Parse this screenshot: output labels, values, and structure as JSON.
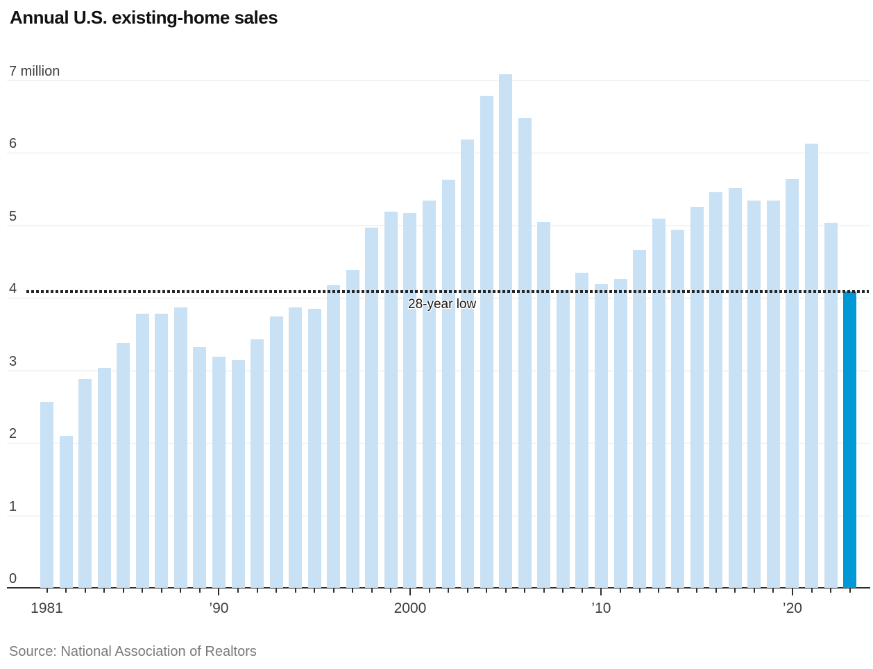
{
  "title": "Annual U.S. existing-home sales",
  "source": "Source: National Association of Realtors",
  "annotation": {
    "label": "28-year low",
    "value": 4.09
  },
  "y_axis": {
    "ticks": [
      {
        "value": 7,
        "label": "7 million"
      },
      {
        "value": 6,
        "label": "6"
      },
      {
        "value": 5,
        "label": "5"
      },
      {
        "value": 4,
        "label": "4"
      },
      {
        "value": 3,
        "label": "3"
      },
      {
        "value": 2,
        "label": "2"
      },
      {
        "value": 1,
        "label": "1"
      },
      {
        "value": 0,
        "label": "0"
      }
    ]
  },
  "x_axis": {
    "labels": [
      {
        "year": 1981,
        "text": "1981"
      },
      {
        "year": 1990,
        "text": "’90"
      },
      {
        "year": 2000,
        "text": "2000"
      },
      {
        "year": 2010,
        "text": "’10"
      },
      {
        "year": 2020,
        "text": "’20"
      }
    ],
    "long_tick_years": [
      1990,
      2000,
      2010,
      2020
    ]
  },
  "colors": {
    "bar": "#c9e1f4",
    "highlight": "#0099d6",
    "grid": "#e4e4e4",
    "axis": "#2e2e2e",
    "dotted": "#262626",
    "title": "#111111",
    "label": "#3d3d3d",
    "source": "#7a7a7a",
    "annotation": "#1a1a1a"
  },
  "chart_data": {
    "type": "bar",
    "title": "Annual U.S. existing-home sales",
    "unit": "million homes",
    "ylim": [
      0,
      7
    ],
    "grid": true,
    "legend": "none",
    "highlight_year": 2023,
    "highlight_value": 4.09,
    "annotations": [
      {
        "text": "28-year low",
        "y": 4.09,
        "style": "horizontal-dotted-line"
      }
    ],
    "x": [
      1981,
      1982,
      1983,
      1984,
      1985,
      1986,
      1987,
      1988,
      1989,
      1990,
      1991,
      1992,
      1993,
      1994,
      1995,
      1996,
      1997,
      1998,
      1999,
      2000,
      2001,
      2002,
      2003,
      2004,
      2005,
      2006,
      2007,
      2008,
      2009,
      2010,
      2011,
      2012,
      2013,
      2014,
      2015,
      2016,
      2017,
      2018,
      2019,
      2020,
      2021,
      2022,
      2023
    ],
    "values": [
      2.56,
      2.1,
      2.88,
      3.03,
      3.38,
      3.78,
      3.78,
      3.87,
      3.32,
      3.19,
      3.14,
      3.43,
      3.74,
      3.87,
      3.85,
      4.17,
      4.38,
      4.97,
      5.19,
      5.17,
      5.34,
      5.63,
      6.18,
      6.78,
      7.08,
      6.48,
      5.04,
      4.11,
      4.34,
      4.19,
      4.26,
      4.66,
      5.09,
      4.94,
      5.25,
      5.45,
      5.51,
      5.34,
      5.34,
      5.64,
      6.12,
      5.03,
      4.09
    ]
  }
}
